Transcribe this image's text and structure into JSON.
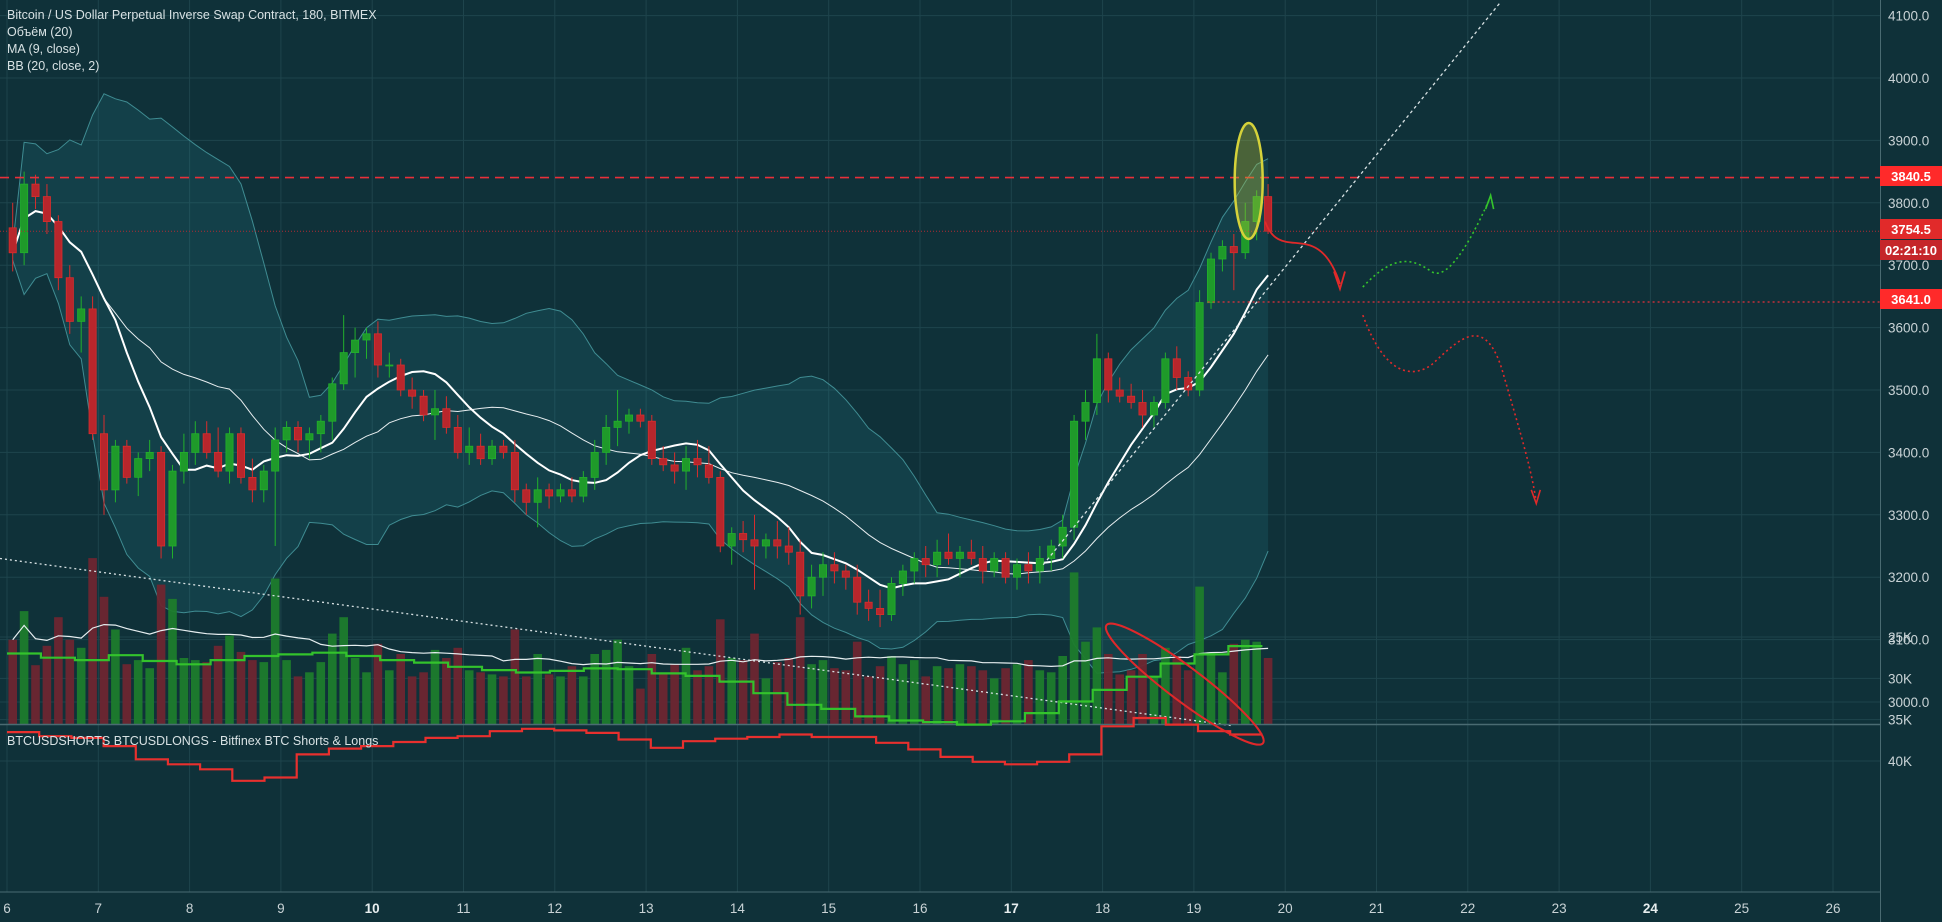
{
  "legend": {
    "title": "Bitcoin / US Dollar Perpetual Inverse Swap Contract, 180, BITMEX",
    "volume": "Объём (20)",
    "ma": "MA (9, close)",
    "bb": "BB (20, close, 2)",
    "lower": "BTCUSDSHORTS BTCUSDLONGS - Bitfinex BTC Shorts & Longs"
  },
  "price_labels": {
    "resistance": "3840.5",
    "last": "3754.5",
    "countdown": "02:21:10",
    "support": "3641.0"
  },
  "colors": {
    "background": "#0f3139",
    "up": "#22b02c",
    "down": "#d92d2d",
    "resistance_line": "#e8303a",
    "label_red": "#ff2a2a",
    "shorts_line": "#e8302e",
    "longs_line": "#33c32c",
    "highlight_ellipse": "#d5d23a"
  },
  "chart_data": [
    {
      "type": "candlestick",
      "timeframe_minutes": 180,
      "x_tick_labels": [
        "6",
        "7",
        "8",
        "9",
        "10",
        "11",
        "12",
        "13",
        "14",
        "15",
        "16",
        "17",
        "18",
        "19",
        "20",
        "21",
        "22",
        "23",
        "24",
        "25",
        "26"
      ],
      "bold_x_ticks": [
        "10",
        "17",
        "24"
      ],
      "y_tick_labels": [
        "3000.0",
        "3100.0",
        "3200.0",
        "3300.0",
        "3400.0",
        "3500.0",
        "3600.0",
        "3700.0",
        "3800.0",
        "3900.0",
        "4000.0",
        "4100.0"
      ],
      "ylim": [
        2963,
        4120
      ],
      "xlim_days": [
        6,
        26.8
      ],
      "grid": true,
      "horizontal_levels": {
        "resistance": 3840.5,
        "last": 3754.5,
        "support": 3641.0
      },
      "ohlc": [
        [
          3760,
          3800,
          3690,
          3720
        ],
        [
          3720,
          3850,
          3700,
          3830
        ],
        [
          3830,
          3845,
          3790,
          3810
        ],
        [
          3810,
          3830,
          3750,
          3770
        ],
        [
          3770,
          3780,
          3660,
          3680
        ],
        [
          3680,
          3700,
          3590,
          3610
        ],
        [
          3610,
          3650,
          3560,
          3630
        ],
        [
          3630,
          3650,
          3420,
          3430
        ],
        [
          3430,
          3460,
          3300,
          3340
        ],
        [
          3340,
          3420,
          3320,
          3410
        ],
        [
          3410,
          3420,
          3350,
          3360
        ],
        [
          3360,
          3400,
          3330,
          3390
        ],
        [
          3390,
          3420,
          3370,
          3400
        ],
        [
          3400,
          3410,
          3230,
          3250
        ],
        [
          3250,
          3380,
          3230,
          3370
        ],
        [
          3370,
          3430,
          3350,
          3400
        ],
        [
          3400,
          3450,
          3380,
          3430
        ],
        [
          3430,
          3450,
          3390,
          3400
        ],
        [
          3400,
          3440,
          3360,
          3370
        ],
        [
          3370,
          3440,
          3350,
          3430
        ],
        [
          3430,
          3440,
          3350,
          3360
        ],
        [
          3360,
          3390,
          3320,
          3340
        ],
        [
          3340,
          3380,
          3320,
          3370
        ],
        [
          3370,
          3440,
          3250,
          3420
        ],
        [
          3420,
          3450,
          3400,
          3440
        ],
        [
          3440,
          3450,
          3400,
          3420
        ],
        [
          3420,
          3440,
          3390,
          3430
        ],
        [
          3430,
          3460,
          3400,
          3450
        ],
        [
          3450,
          3520,
          3420,
          3510
        ],
        [
          3510,
          3620,
          3500,
          3560
        ],
        [
          3560,
          3600,
          3520,
          3580
        ],
        [
          3580,
          3600,
          3550,
          3590
        ],
        [
          3590,
          3610,
          3520,
          3540
        ],
        [
          3540,
          3560,
          3520,
          3540
        ],
        [
          3540,
          3550,
          3490,
          3500
        ],
        [
          3500,
          3520,
          3470,
          3490
        ],
        [
          3490,
          3500,
          3450,
          3460
        ],
        [
          3460,
          3500,
          3420,
          3470
        ],
        [
          3470,
          3490,
          3430,
          3440
        ],
        [
          3440,
          3460,
          3390,
          3400
        ],
        [
          3400,
          3440,
          3380,
          3410
        ],
        [
          3410,
          3430,
          3380,
          3390
        ],
        [
          3390,
          3420,
          3380,
          3410
        ],
        [
          3410,
          3420,
          3390,
          3400
        ],
        [
          3400,
          3420,
          3320,
          3340
        ],
        [
          3340,
          3350,
          3300,
          3320
        ],
        [
          3320,
          3360,
          3280,
          3340
        ],
        [
          3340,
          3350,
          3310,
          3330
        ],
        [
          3330,
          3350,
          3320,
          3340
        ],
        [
          3340,
          3360,
          3320,
          3330
        ],
        [
          3330,
          3370,
          3320,
          3360
        ],
        [
          3360,
          3420,
          3340,
          3400
        ],
        [
          3400,
          3460,
          3380,
          3440
        ],
        [
          3440,
          3500,
          3410,
          3450
        ],
        [
          3450,
          3470,
          3430,
          3460
        ],
        [
          3460,
          3470,
          3440,
          3450
        ],
        [
          3450,
          3460,
          3380,
          3390
        ],
        [
          3390,
          3410,
          3370,
          3380
        ],
        [
          3380,
          3400,
          3350,
          3370
        ],
        [
          3370,
          3410,
          3340,
          3390
        ],
        [
          3390,
          3420,
          3360,
          3380
        ],
        [
          3380,
          3410,
          3350,
          3360
        ],
        [
          3360,
          3370,
          3240,
          3250
        ],
        [
          3250,
          3280,
          3220,
          3270
        ],
        [
          3270,
          3290,
          3240,
          3260
        ],
        [
          3260,
          3300,
          3180,
          3250
        ],
        [
          3250,
          3270,
          3230,
          3260
        ],
        [
          3260,
          3290,
          3230,
          3250
        ],
        [
          3250,
          3280,
          3220,
          3240
        ],
        [
          3240,
          3260,
          3140,
          3170
        ],
        [
          3170,
          3220,
          3150,
          3200
        ],
        [
          3200,
          3240,
          3170,
          3220
        ],
        [
          3220,
          3240,
          3190,
          3210
        ],
        [
          3210,
          3220,
          3180,
          3200
        ],
        [
          3200,
          3220,
          3140,
          3160
        ],
        [
          3160,
          3180,
          3130,
          3150
        ],
        [
          3150,
          3180,
          3120,
          3140
        ],
        [
          3140,
          3200,
          3130,
          3190
        ],
        [
          3190,
          3220,
          3170,
          3210
        ],
        [
          3210,
          3240,
          3190,
          3230
        ],
        [
          3230,
          3250,
          3200,
          3220
        ],
        [
          3220,
          3260,
          3200,
          3240
        ],
        [
          3240,
          3270,
          3220,
          3230
        ],
        [
          3230,
          3250,
          3200,
          3240
        ],
        [
          3240,
          3260,
          3220,
          3230
        ],
        [
          3230,
          3250,
          3190,
          3210
        ],
        [
          3210,
          3240,
          3200,
          3230
        ],
        [
          3230,
          3240,
          3190,
          3200
        ],
        [
          3200,
          3230,
          3180,
          3220
        ],
        [
          3220,
          3240,
          3190,
          3210
        ],
        [
          3210,
          3250,
          3190,
          3230
        ],
        [
          3230,
          3260,
          3210,
          3250
        ],
        [
          3250,
          3300,
          3230,
          3280
        ],
        [
          3280,
          3460,
          3260,
          3450
        ],
        [
          3450,
          3500,
          3420,
          3480
        ],
        [
          3480,
          3590,
          3460,
          3550
        ],
        [
          3550,
          3560,
          3480,
          3500
        ],
        [
          3500,
          3520,
          3480,
          3490
        ],
        [
          3490,
          3510,
          3470,
          3480
        ],
        [
          3480,
          3500,
          3440,
          3460
        ],
        [
          3460,
          3490,
          3440,
          3480
        ],
        [
          3480,
          3560,
          3470,
          3550
        ],
        [
          3550,
          3570,
          3500,
          3520
        ],
        [
          3520,
          3530,
          3490,
          3500
        ],
        [
          3500,
          3660,
          3490,
          3640
        ],
        [
          3640,
          3720,
          3630,
          3710
        ],
        [
          3710,
          3740,
          3690,
          3730
        ],
        [
          3730,
          3750,
          3660,
          3720
        ],
        [
          3720,
          3800,
          3710,
          3770
        ],
        [
          3770,
          3820,
          3740,
          3810
        ],
        [
          3810,
          3830,
          3750,
          3754.5
        ]
      ],
      "volume_ylim": [
        0,
        300
      ]
    },
    {
      "type": "line",
      "title": "BTCUSDSHORTS BTCUSDLONGS - Bitfinex BTC Shorts & Longs",
      "y_tick_labels": [
        "25K",
        "30K",
        "35K",
        "40K"
      ],
      "ylim": [
        24800,
        42500
      ],
      "series": [
        {
          "name": "BTCUSDSHORTS",
          "values": [
            36500,
            37000,
            37200,
            38200,
            39800,
            40400,
            41000,
            42400,
            42000,
            39200,
            38500,
            38200,
            37700,
            37200,
            37000,
            36400,
            36100,
            36300,
            36600,
            37400,
            38400,
            37600,
            37300,
            37100,
            36800,
            37100,
            37100,
            37800,
            38600,
            39500,
            40100,
            40400,
            40100,
            39200,
            35800,
            34800,
            35600,
            36400,
            36800
          ]
        },
        {
          "name": "BTCUSDLONGS",
          "values": [
            27000,
            27500,
            27800,
            27200,
            27900,
            28300,
            27800,
            27300,
            27100,
            26900,
            27300,
            27800,
            28100,
            28600,
            29000,
            29300,
            29100,
            28800,
            28900,
            29400,
            29700,
            30400,
            31800,
            33200,
            33700,
            34600,
            35100,
            35300,
            35600,
            35200,
            34200,
            32800,
            31400,
            29800,
            28200,
            27100,
            26100
          ]
        }
      ]
    }
  ]
}
